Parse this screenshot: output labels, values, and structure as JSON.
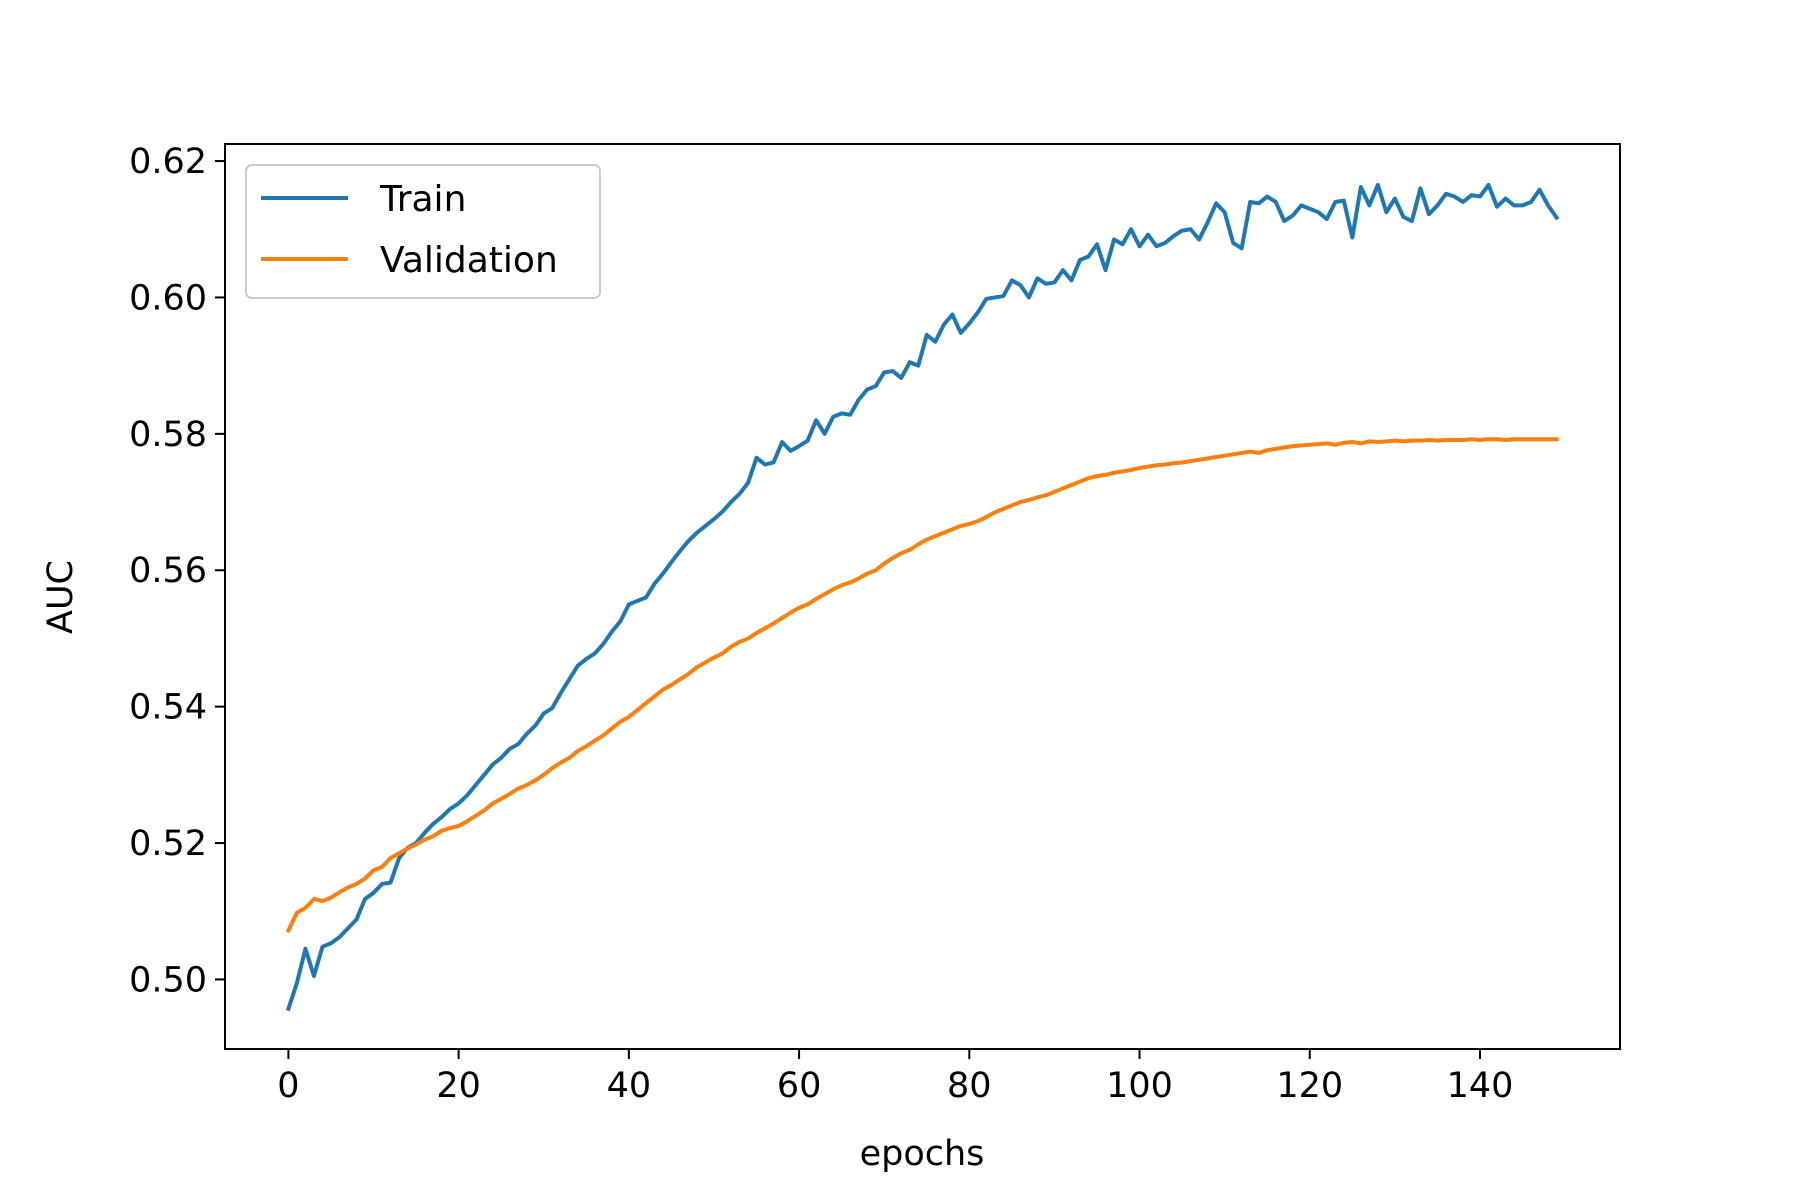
{
  "chart_data": {
    "type": "line",
    "title": "",
    "xlabel": "epochs",
    "ylabel": "AUC",
    "xlim": [
      -7.45,
      156.45
    ],
    "ylim": [
      0.4898,
      0.6225
    ],
    "xticks": [
      0,
      20,
      40,
      60,
      80,
      100,
      120,
      140
    ],
    "yticks": [
      0.5,
      0.52,
      0.54,
      0.56,
      0.58,
      0.6,
      0.62
    ],
    "xtick_labels": [
      "0",
      "20",
      "40",
      "60",
      "80",
      "100",
      "120",
      "140"
    ],
    "ytick_labels": [
      "0.50",
      "0.52",
      "0.54",
      "0.56",
      "0.58",
      "0.60",
      "0.62"
    ],
    "grid": false,
    "legend": {
      "position": "upper-left"
    },
    "x": [
      0,
      1,
      2,
      3,
      4,
      5,
      6,
      7,
      8,
      9,
      10,
      11,
      12,
      13,
      14,
      15,
      16,
      17,
      18,
      19,
      20,
      21,
      22,
      23,
      24,
      25,
      26,
      27,
      28,
      29,
      30,
      31,
      32,
      33,
      34,
      35,
      36,
      37,
      38,
      39,
      40,
      41,
      42,
      43,
      44,
      45,
      46,
      47,
      48,
      49,
      50,
      51,
      52,
      53,
      54,
      55,
      56,
      57,
      58,
      59,
      60,
      61,
      62,
      63,
      64,
      65,
      66,
      67,
      68,
      69,
      70,
      71,
      72,
      73,
      74,
      75,
      76,
      77,
      78,
      79,
      80,
      81,
      82,
      83,
      84,
      85,
      86,
      87,
      88,
      89,
      90,
      91,
      92,
      93,
      94,
      95,
      96,
      97,
      98,
      99,
      100,
      101,
      102,
      103,
      104,
      105,
      106,
      107,
      108,
      109,
      110,
      111,
      112,
      113,
      114,
      115,
      116,
      117,
      118,
      119,
      120,
      121,
      122,
      123,
      124,
      125,
      126,
      127,
      128,
      129,
      130,
      131,
      132,
      133,
      134,
      135,
      136,
      137,
      138,
      139,
      140,
      141,
      142,
      143,
      144,
      145,
      146,
      147,
      148,
      149
    ],
    "series": [
      {
        "name": "Train",
        "color": "#1f77b4",
        "values": [
          0.4957,
          0.4995,
          0.5045,
          0.5005,
          0.5048,
          0.5053,
          0.5062,
          0.5075,
          0.5088,
          0.5118,
          0.5127,
          0.514,
          0.5142,
          0.5178,
          0.5193,
          0.52,
          0.5215,
          0.5228,
          0.5238,
          0.525,
          0.5258,
          0.527,
          0.5285,
          0.53,
          0.5315,
          0.5325,
          0.5338,
          0.5345,
          0.536,
          0.5372,
          0.539,
          0.5398,
          0.542,
          0.544,
          0.546,
          0.547,
          0.5478,
          0.5492,
          0.551,
          0.5525,
          0.555,
          0.5555,
          0.556,
          0.558,
          0.5595,
          0.5612,
          0.5628,
          0.5643,
          0.5655,
          0.5665,
          0.5675,
          0.5686,
          0.57,
          0.5712,
          0.5728,
          0.5765,
          0.5755,
          0.5758,
          0.5788,
          0.5775,
          0.5782,
          0.579,
          0.582,
          0.58,
          0.5825,
          0.583,
          0.5828,
          0.585,
          0.5865,
          0.587,
          0.589,
          0.5892,
          0.5882,
          0.5905,
          0.59,
          0.5945,
          0.5935,
          0.596,
          0.5975,
          0.5948,
          0.5962,
          0.5978,
          0.5998,
          0.6,
          0.6002,
          0.6025,
          0.6018,
          0.6,
          0.6028,
          0.602,
          0.6022,
          0.604,
          0.6025,
          0.6055,
          0.606,
          0.6078,
          0.604,
          0.6085,
          0.6078,
          0.61,
          0.6075,
          0.6092,
          0.6075,
          0.608,
          0.609,
          0.6098,
          0.61,
          0.6085,
          0.611,
          0.6138,
          0.6125,
          0.608,
          0.6072,
          0.614,
          0.6138,
          0.6148,
          0.614,
          0.6112,
          0.612,
          0.6135,
          0.613,
          0.6125,
          0.6115,
          0.614,
          0.6142,
          0.6088,
          0.6162,
          0.6135,
          0.6165,
          0.6125,
          0.6145,
          0.6118,
          0.6112,
          0.616,
          0.6122,
          0.6135,
          0.6152,
          0.6148,
          0.614,
          0.615,
          0.6148,
          0.6165,
          0.6133,
          0.6145,
          0.6135,
          0.6135,
          0.614,
          0.6158,
          0.6135,
          0.6117
        ]
      },
      {
        "name": "Validation",
        "color": "#ff7f0e",
        "values": [
          0.5072,
          0.5098,
          0.5105,
          0.5118,
          0.5115,
          0.512,
          0.5128,
          0.5135,
          0.514,
          0.5148,
          0.516,
          0.5165,
          0.5178,
          0.5185,
          0.5192,
          0.5198,
          0.5205,
          0.521,
          0.5218,
          0.5222,
          0.5225,
          0.5232,
          0.524,
          0.5248,
          0.5258,
          0.5265,
          0.5272,
          0.528,
          0.5285,
          0.5292,
          0.53,
          0.531,
          0.5318,
          0.5325,
          0.5335,
          0.5342,
          0.535,
          0.5358,
          0.5368,
          0.5378,
          0.5385,
          0.5395,
          0.5405,
          0.5415,
          0.5425,
          0.5432,
          0.544,
          0.5448,
          0.5458,
          0.5465,
          0.5472,
          0.5478,
          0.5488,
          0.5495,
          0.55,
          0.5508,
          0.5515,
          0.5522,
          0.553,
          0.5538,
          0.5545,
          0.555,
          0.5558,
          0.5565,
          0.5572,
          0.5578,
          0.5582,
          0.5588,
          0.5595,
          0.56,
          0.561,
          0.5618,
          0.5625,
          0.563,
          0.5638,
          0.5645,
          0.565,
          0.5655,
          0.566,
          0.5665,
          0.5668,
          0.5672,
          0.5678,
          0.5685,
          0.569,
          0.5695,
          0.57,
          0.5703,
          0.5707,
          0.571,
          0.5715,
          0.572,
          0.5725,
          0.573,
          0.5735,
          0.5738,
          0.574,
          0.5743,
          0.5745,
          0.5747,
          0.575,
          0.5752,
          0.5754,
          0.5755,
          0.5757,
          0.5758,
          0.576,
          0.5762,
          0.5764,
          0.5766,
          0.5768,
          0.577,
          0.5772,
          0.5774,
          0.5772,
          0.5776,
          0.5778,
          0.578,
          0.5782,
          0.5783,
          0.5784,
          0.5785,
          0.5786,
          0.5784,
          0.5787,
          0.5788,
          0.5786,
          0.5789,
          0.5788,
          0.5789,
          0.579,
          0.5789,
          0.579,
          0.579,
          0.5791,
          0.579,
          0.5791,
          0.5791,
          0.5791,
          0.5792,
          0.5791,
          0.5792,
          0.5792,
          0.5791,
          0.5792,
          0.5792,
          0.5792,
          0.5792,
          0.5792,
          0.5792
        ]
      }
    ]
  }
}
